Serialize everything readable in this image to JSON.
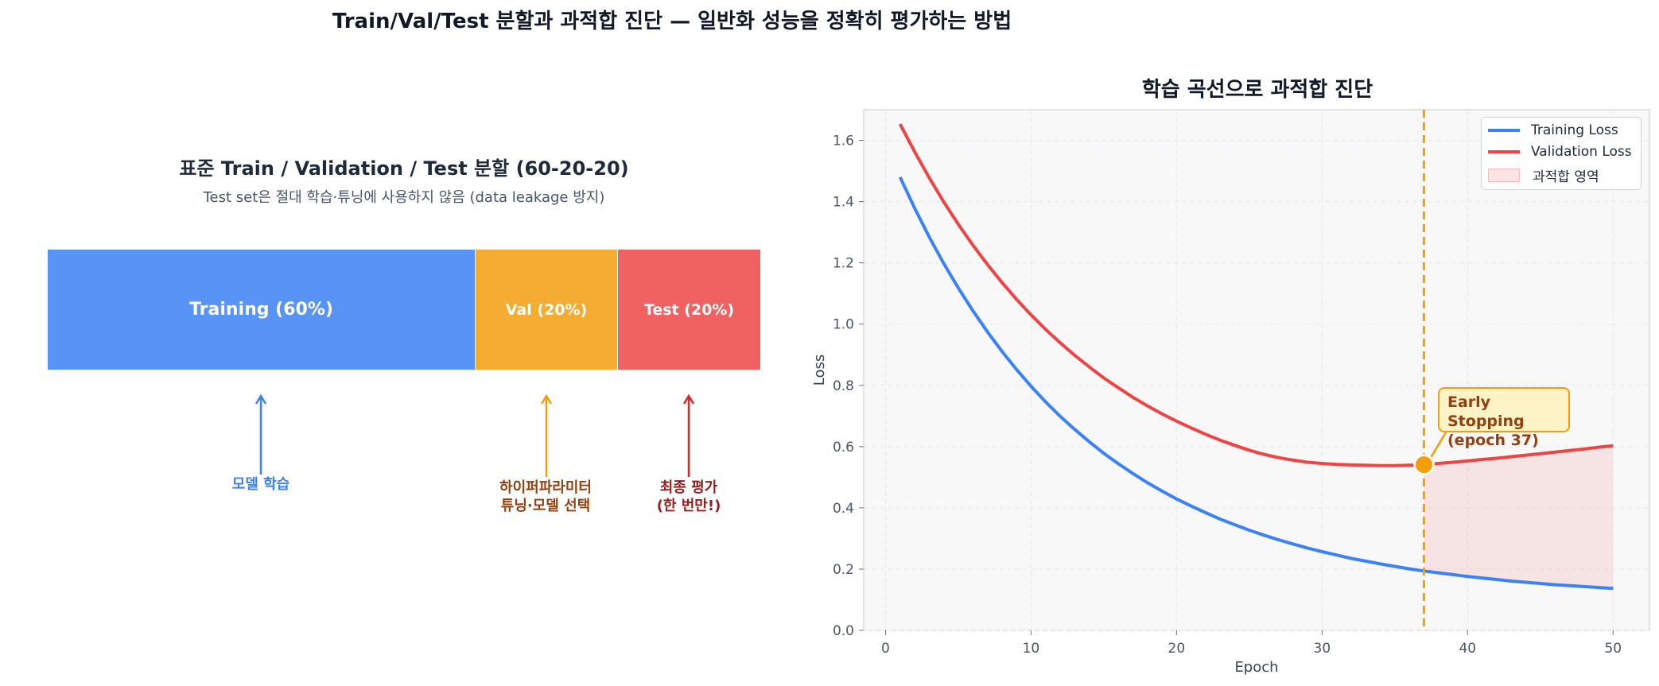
{
  "title": "Train/Val/Test 분할과 과적합 진단 — 일반화 성능을 정확히 평가하는 방법",
  "split_panel": {
    "title": "표준 Train / Validation / Test 분할 (60-20-20)",
    "subtitle": "Test set은 절대 학습·튜닝에 사용하지 않음 (data leakage 방지)",
    "segments": [
      {
        "label": "Training (60%)",
        "share": 60,
        "color": "#5894f6"
      },
      {
        "label": "Val (20%)",
        "share": 20,
        "color": "#f5ac33"
      },
      {
        "label": "Test (20%)",
        "share": 20,
        "color": "#f06262"
      }
    ],
    "descriptions": [
      {
        "text": "모델 학습",
        "color": "#3b82f6"
      },
      {
        "line1": "하이퍼파라미터",
        "line2": "튜닝·모델 선택",
        "color": "#f59e0b"
      },
      {
        "line1": "최종 평가",
        "line2": "(한 번만!)",
        "color": "#dc2626"
      }
    ]
  },
  "chart_data": {
    "type": "line",
    "title": "학습 곡선으로 과적합 진단",
    "xlabel": "Epoch",
    "ylabel": "Loss",
    "xlim": [
      -1.5,
      52.5
    ],
    "ylim": [
      0.0,
      1.7
    ],
    "xticks": [
      0,
      10,
      20,
      30,
      40,
      50
    ],
    "yticks": [
      0.0,
      0.2,
      0.4,
      0.6,
      0.8,
      1.0,
      1.2,
      1.4,
      1.6
    ],
    "grid": true,
    "legend_position": "top-right",
    "x": [
      1,
      2,
      3,
      4,
      5,
      6,
      7,
      8,
      9,
      10,
      11,
      12,
      13,
      14,
      15,
      16,
      17,
      18,
      19,
      20,
      21,
      22,
      23,
      24,
      25,
      26,
      27,
      28,
      29,
      30,
      31,
      32,
      33,
      34,
      35,
      36,
      37,
      38,
      39,
      40,
      41,
      42,
      43,
      44,
      45,
      46,
      47,
      48,
      49,
      50
    ],
    "series": [
      {
        "name": "Training Loss",
        "color": "#3b82f6",
        "values": [
          1.48,
          1.379,
          1.285,
          1.198,
          1.118,
          1.044,
          0.975,
          0.911,
          0.852,
          0.797,
          0.746,
          0.699,
          0.656,
          0.616,
          0.578,
          0.544,
          0.512,
          0.482,
          0.455,
          0.429,
          0.406,
          0.384,
          0.363,
          0.345,
          0.327,
          0.311,
          0.296,
          0.282,
          0.269,
          0.257,
          0.246,
          0.235,
          0.226,
          0.217,
          0.209,
          0.201,
          0.194,
          0.188,
          0.182,
          0.176,
          0.171,
          0.166,
          0.161,
          0.157,
          0.153,
          0.149,
          0.146,
          0.143,
          0.14,
          0.137
        ]
      },
      {
        "name": "Validation Loss",
        "color": "#ef4444",
        "values": [
          1.653,
          1.563,
          1.478,
          1.399,
          1.326,
          1.258,
          1.195,
          1.136,
          1.081,
          1.03,
          0.983,
          0.939,
          0.898,
          0.86,
          0.824,
          0.792,
          0.761,
          0.733,
          0.707,
          0.683,
          0.661,
          0.64,
          0.621,
          0.604,
          0.588,
          0.575,
          0.564,
          0.556,
          0.549,
          0.545,
          0.542,
          0.54,
          0.539,
          0.538,
          0.538,
          0.539,
          0.541,
          0.545,
          0.549,
          0.553,
          0.558,
          0.562,
          0.567,
          0.572,
          0.577,
          0.582,
          0.587,
          0.592,
          0.598,
          0.603
        ]
      }
    ],
    "overfit_region": {
      "label": "과적합 영역",
      "x_start": 37,
      "x_end": 50,
      "color": "#ef4444"
    },
    "early_stopping": {
      "epoch": 37,
      "loss": 0.541,
      "line1": "Early Stopping",
      "line2": "(epoch 37)",
      "color": "#f59e0b"
    }
  }
}
